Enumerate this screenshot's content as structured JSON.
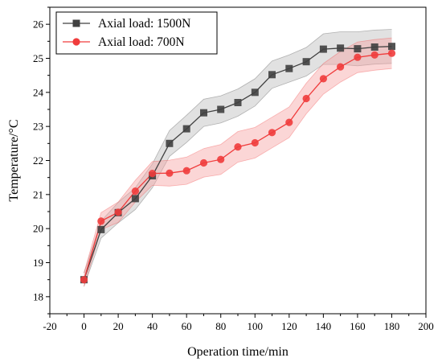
{
  "chart_data": {
    "type": "line",
    "title": "",
    "xlabel": "Operation time/min",
    "ylabel": "Temperature/°C",
    "xlim": [
      -20,
      200
    ],
    "ylim": [
      17.5,
      26.5
    ],
    "xticks": [
      -20,
      0,
      20,
      40,
      60,
      80,
      100,
      120,
      140,
      160,
      180,
      200
    ],
    "yticks": [
      18,
      19,
      20,
      21,
      22,
      23,
      24,
      25,
      26
    ],
    "grid": false,
    "legend_position": "top-left",
    "x": [
      0,
      10,
      20,
      30,
      40,
      50,
      60,
      70,
      80,
      90,
      100,
      110,
      120,
      130,
      140,
      150,
      160,
      170,
      180
    ],
    "series": [
      {
        "name": "Axial load: 1500N",
        "color": "#404040",
        "band_color": "#bdbdbd",
        "marker": "square",
        "values": [
          18.5,
          19.97,
          20.47,
          20.88,
          21.55,
          22.5,
          22.93,
          23.4,
          23.5,
          23.7,
          24.0,
          24.52,
          24.7,
          24.9,
          25.27,
          25.3,
          25.28,
          25.33,
          25.35
        ],
        "band_halfwidth": [
          0.2,
          0.25,
          0.3,
          0.32,
          0.35,
          0.38,
          0.4,
          0.4,
          0.4,
          0.4,
          0.4,
          0.4,
          0.4,
          0.42,
          0.45,
          0.48,
          0.5,
          0.5,
          0.5
        ]
      },
      {
        "name": "Axial load: 700N",
        "color": "#f03c3c",
        "band_color": "#f6a5a5",
        "marker": "circle",
        "values": [
          18.5,
          20.22,
          20.48,
          21.1,
          21.62,
          21.63,
          21.7,
          21.93,
          22.03,
          22.4,
          22.52,
          22.82,
          23.12,
          23.82,
          24.4,
          24.75,
          25.03,
          25.1,
          25.15
        ],
        "band_halfwidth": [
          0.2,
          0.25,
          0.3,
          0.32,
          0.35,
          0.38,
          0.4,
          0.42,
          0.44,
          0.45,
          0.45,
          0.45,
          0.45,
          0.45,
          0.45,
          0.45,
          0.45,
          0.45,
          0.45
        ]
      }
    ]
  }
}
